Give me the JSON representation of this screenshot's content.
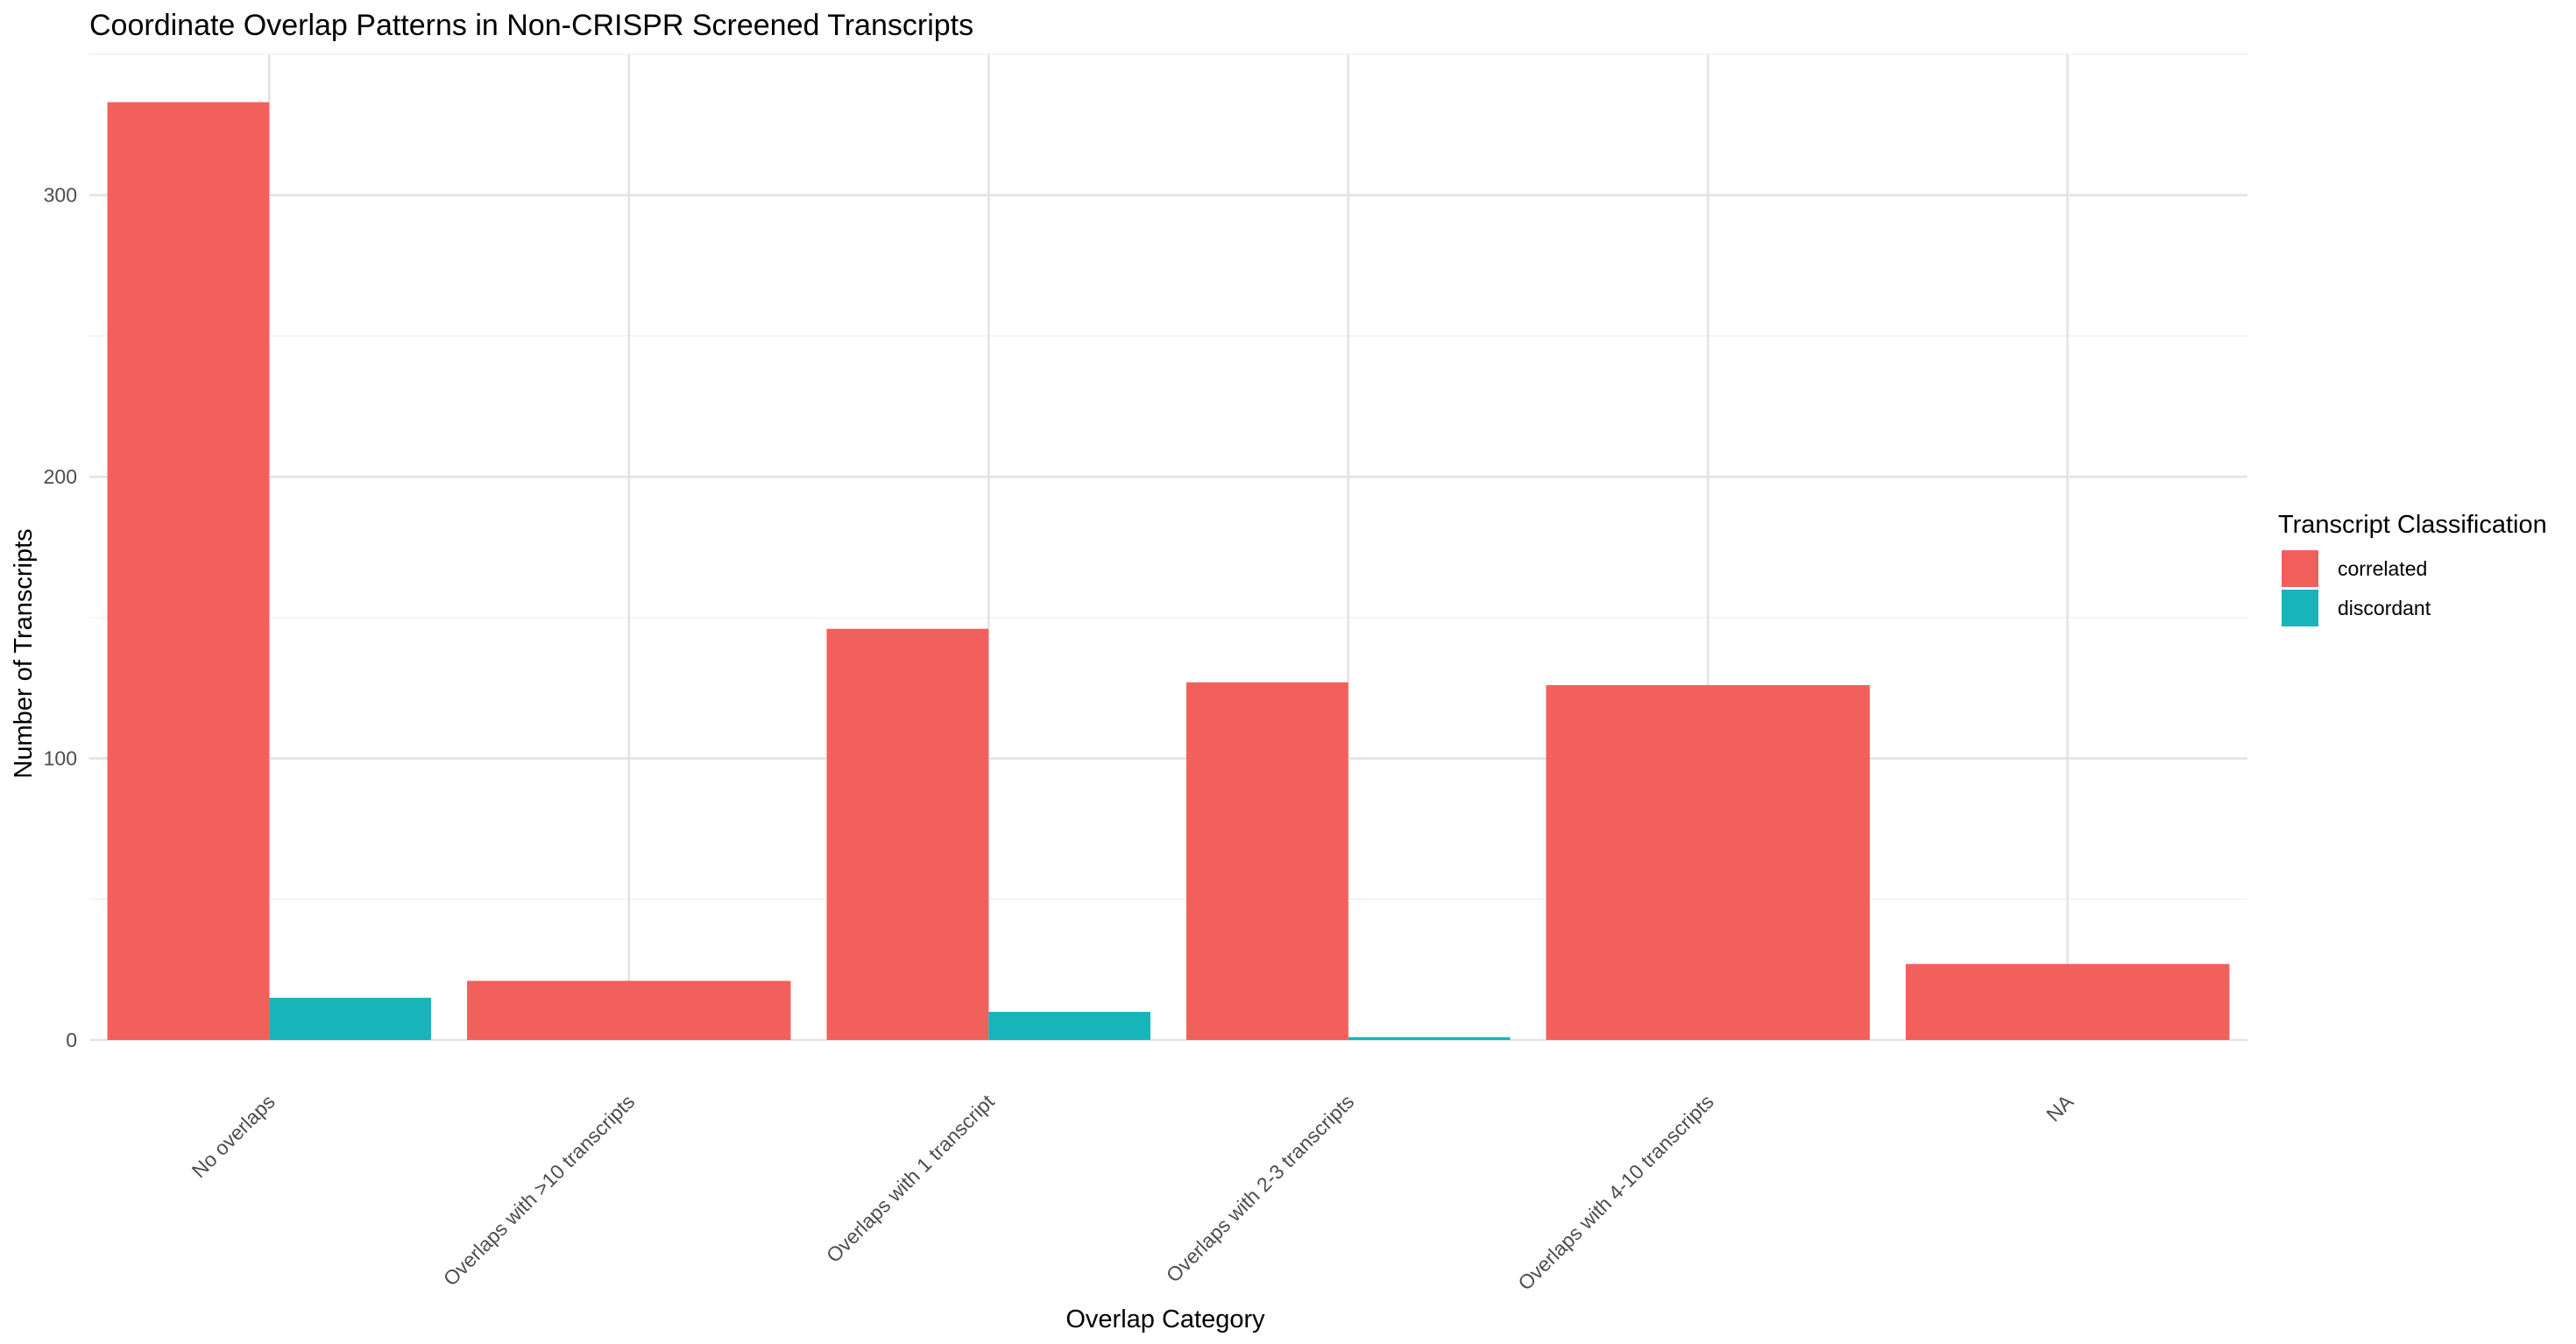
{
  "chart_data": {
    "type": "bar",
    "title": "Coordinate Overlap Patterns in Non-CRISPR Screened Transcripts",
    "xlabel": "Overlap Category",
    "ylabel": "Number of Transcripts",
    "categories": [
      "No overlaps",
      "Overlaps with >10 transcripts",
      "Overlaps with 1 transcript",
      "Overlaps with 2-3 transcripts",
      "Overlaps with 4-10 transcripts",
      "NA"
    ],
    "series": [
      {
        "name": "correlated",
        "color": "#F2605C",
        "values": [
          333,
          21,
          146,
          127,
          126,
          27
        ]
      },
      {
        "name": "discordant",
        "color": "#17B4BA",
        "values": [
          15,
          null,
          10,
          1,
          null,
          null
        ]
      }
    ],
    "ylim": [
      0,
      350
    ],
    "yticks": [
      0,
      100,
      200,
      300
    ],
    "grid": true,
    "legend": {
      "title": "Transcript Classification",
      "position": "right"
    }
  }
}
